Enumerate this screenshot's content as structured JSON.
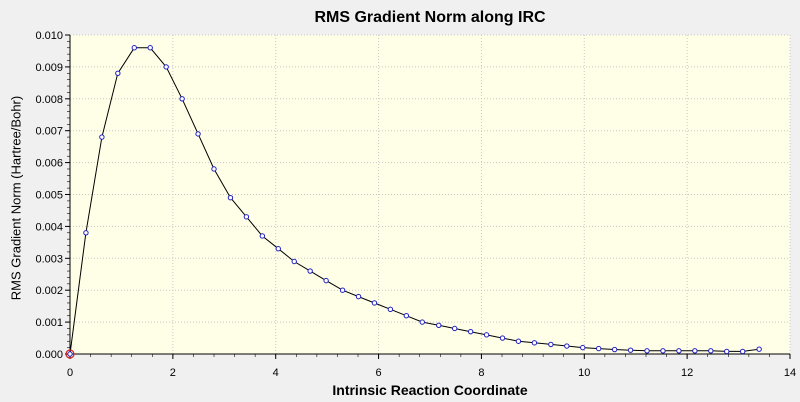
{
  "chart_data": {
    "type": "line",
    "title": "RMS Gradient Norm along IRC",
    "xlabel": "Intrinsic Reaction Coordinate",
    "ylabel": "RMS Gradient Norm (Hartree/Bohr)",
    "xlim": [
      0,
      14
    ],
    "ylim": [
      0,
      0.01
    ],
    "x_ticks": [
      0,
      2,
      4,
      6,
      8,
      10,
      12,
      14
    ],
    "x_tick_labels": [
      "0",
      "2",
      "4",
      "6",
      "8",
      "10",
      "12",
      "14"
    ],
    "y_ticks": [
      0,
      0.001,
      0.002,
      0.003,
      0.004,
      0.005,
      0.006,
      0.007,
      0.008,
      0.009,
      0.01
    ],
    "y_tick_labels": [
      "0.000",
      "0.001",
      "0.002",
      "0.003",
      "0.004",
      "0.005",
      "0.006",
      "0.007",
      "0.008",
      "0.009",
      "0.010"
    ],
    "grid": true,
    "legend": "none",
    "colors": {
      "plot_background": "#ffffe8",
      "line": "#000000",
      "marker": "#2020c0",
      "highlight_marker": "#d02020",
      "grid": "#c8c8c8"
    },
    "series": [
      {
        "x": [
          0,
          0.31,
          0.62,
          0.93,
          1.25,
          1.56,
          1.87,
          2.18,
          2.49,
          2.8,
          3.12,
          3.43,
          3.74,
          4.05,
          4.36,
          4.67,
          4.98,
          5.3,
          5.61,
          5.92,
          6.23,
          6.54,
          6.85,
          7.17,
          7.48,
          7.79,
          8.1,
          8.41,
          8.72,
          9.03,
          9.35,
          9.66,
          9.97,
          10.28,
          10.59,
          10.9,
          11.22,
          11.53,
          11.84,
          12.15,
          12.46,
          12.77,
          13.08,
          13.4
        ],
        "y": [
          0.0,
          0.0038,
          0.0068,
          0.0088,
          0.0096,
          0.0096,
          0.009,
          0.008,
          0.0069,
          0.0058,
          0.0049,
          0.0043,
          0.0037,
          0.0033,
          0.0029,
          0.0026,
          0.0023,
          0.002,
          0.0018,
          0.0016,
          0.0014,
          0.0012,
          0.001,
          0.0009,
          0.0008,
          0.0007,
          0.0006,
          0.0005,
          0.0004,
          0.00035,
          0.0003,
          0.00025,
          0.0002,
          0.00017,
          0.00014,
          0.00012,
          0.0001,
          0.0001,
          0.0001,
          0.0001,
          0.0001,
          8e-05,
          8e-05,
          0.00015
        ]
      }
    ],
    "highlighted_point": {
      "x": 0,
      "y": 0.0
    }
  }
}
